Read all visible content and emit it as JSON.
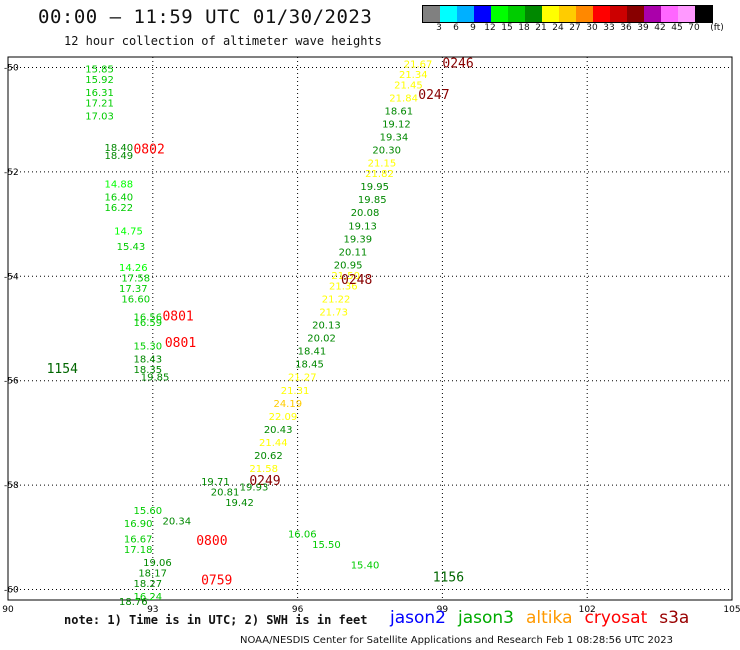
{
  "header": {
    "title": "00:00 – 11:59 UTC 01/30/2023",
    "subtitle": "12 hour collection of altimeter wave heights"
  },
  "colorbar": {
    "labels": [
      "3",
      "6",
      "9",
      "12",
      "15",
      "18",
      "21",
      "24",
      "27",
      "30",
      "33",
      "36",
      "39",
      "42",
      "45",
      "70",
      "(ft)"
    ],
    "colors": [
      "#808080",
      "#00ffff",
      "#00b0ff",
      "#0000ff",
      "#00ff00",
      "#00cc00",
      "#008800",
      "#ffff00",
      "#ffcc00",
      "#ff8800",
      "#ff0000",
      "#cc0000",
      "#880000",
      "#aa00aa",
      "#ff66ff",
      "#ff99ff",
      "#000000"
    ]
  },
  "footer": {
    "note": "note: 1) Time is in UTC; 2) SWH is in feet",
    "credit": "NOAA/NESDIS Center for Satellite Applications and Research   Feb  1 08:28:56 UTC 2023"
  },
  "satellites": [
    {
      "name": "jason2",
      "color": "#0000ff"
    },
    {
      "name": "jason3",
      "color": "#00aa00"
    },
    {
      "name": "altika",
      "color": "#ff9900"
    },
    {
      "name": "cryosat",
      "color": "#ff0000"
    },
    {
      "name": "s3a",
      "color": "#990000"
    }
  ],
  "chart_data": {
    "type": "scatter",
    "xlim": [
      90,
      105
    ],
    "ylim": [
      -60.2,
      -49.8
    ],
    "xticks": [
      90,
      93,
      96,
      99,
      102,
      105
    ],
    "yticks": [
      -50,
      -52,
      -54,
      -56,
      -58,
      -60
    ],
    "grid": true,
    "tracks": [
      {
        "name": "track-0246",
        "time_label": "0246",
        "time_pos": [
          99.0,
          -50.0
        ],
        "points": [
          [
            98.2,
            -50.0,
            21.67
          ],
          [
            98.1,
            -50.2,
            21.34
          ],
          [
            98.0,
            -50.4,
            21.45
          ],
          [
            97.9,
            -50.65,
            21.84
          ],
          [
            97.8,
            -50.9,
            18.61
          ],
          [
            97.75,
            -51.15,
            19.12
          ],
          [
            97.7,
            -51.4,
            19.34
          ],
          [
            97.55,
            -51.65,
            20.3
          ],
          [
            97.45,
            -51.9,
            21.15
          ],
          [
            97.4,
            -52.1,
            21.82
          ],
          [
            97.3,
            -52.35,
            19.95
          ],
          [
            97.25,
            -52.6,
            19.85
          ],
          [
            97.1,
            -52.85,
            20.08
          ],
          [
            97.05,
            -53.1,
            19.13
          ],
          [
            96.95,
            -53.35,
            19.39
          ],
          [
            96.85,
            -53.6,
            20.11
          ],
          [
            96.75,
            -53.85,
            20.95
          ],
          [
            96.7,
            -54.05,
            21.5
          ],
          [
            96.65,
            -54.25,
            21.36
          ],
          [
            96.5,
            -54.5,
            21.22
          ],
          [
            96.45,
            -54.75,
            21.73
          ],
          [
            96.3,
            -55.0,
            20.13
          ],
          [
            96.2,
            -55.25,
            20.02
          ],
          [
            96.0,
            -55.5,
            18.41
          ],
          [
            95.95,
            -55.75,
            18.45
          ],
          [
            95.8,
            -56.0,
            21.27
          ],
          [
            95.65,
            -56.25,
            21.31
          ],
          [
            95.5,
            -56.5,
            24.19
          ],
          [
            95.4,
            -56.75,
            22.09
          ],
          [
            95.3,
            -57.0,
            20.43
          ],
          [
            95.2,
            -57.25,
            21.44
          ],
          [
            95.1,
            -57.5,
            20.62
          ],
          [
            95.0,
            -57.75,
            21.58
          ]
        ]
      },
      {
        "name": "track-0247",
        "time_label": "0247",
        "time_pos": [
          98.5,
          -50.6
        ],
        "points": []
      },
      {
        "name": "track-0248",
        "time_label": "0248",
        "time_pos": [
          96.9,
          -54.15
        ],
        "points": []
      },
      {
        "name": "track-0249",
        "time_label": "0249",
        "time_pos": [
          95.0,
          -58.0
        ],
        "points": []
      },
      {
        "name": "track-0801",
        "time_label": "0801",
        "time_pos": [
          93.2,
          -54.85
        ],
        "points": []
      },
      {
        "name": "track-0801b",
        "time_label": "0801",
        "time_pos": [
          93.25,
          -55.35
        ],
        "points": []
      },
      {
        "name": "track-0802",
        "time_label": "0802",
        "time_pos": [
          92.6,
          -51.65
        ],
        "points": []
      },
      {
        "name": "track-0800",
        "time_label": "0800",
        "time_pos": [
          93.9,
          -59.15
        ],
        "points": []
      },
      {
        "name": "track-0759",
        "time_label": "0759",
        "time_pos": [
          94.0,
          -59.9
        ],
        "points": []
      },
      {
        "name": "track-1154",
        "time_label": "1154",
        "time_pos": [
          90.8,
          -55.85
        ],
        "points": []
      },
      {
        "name": "track-1156",
        "time_label": "1156",
        "time_pos": [
          98.8,
          -59.85
        ],
        "points": []
      },
      {
        "name": "track-0800-series",
        "points": [
          [
            91.6,
            -50.1,
            15.85
          ],
          [
            91.6,
            -50.3,
            15.92
          ],
          [
            91.6,
            -50.55,
            16.31
          ],
          [
            91.6,
            -50.75,
            17.21
          ],
          [
            91.6,
            -51.0,
            17.03
          ],
          [
            92.0,
            -51.6,
            18.4
          ],
          [
            92.0,
            -51.75,
            18.49
          ],
          [
            92.0,
            -52.3,
            14.88
          ],
          [
            92.0,
            -52.55,
            16.4
          ],
          [
            92.0,
            -52.75,
            16.22
          ],
          [
            92.2,
            -53.2,
            14.75
          ],
          [
            92.25,
            -53.5,
            15.43
          ],
          [
            92.3,
            -53.9,
            14.26
          ],
          [
            92.35,
            -54.1,
            17.58
          ],
          [
            92.3,
            -54.3,
            17.37
          ],
          [
            92.35,
            -54.5,
            16.6
          ],
          [
            92.6,
            -54.85,
            16.56
          ],
          [
            92.6,
            -54.95,
            16.59
          ],
          [
            92.6,
            -55.4,
            15.3
          ],
          [
            92.6,
            -55.65,
            18.43
          ],
          [
            92.6,
            -55.85,
            18.35
          ],
          [
            92.75,
            -56.0,
            19.85
          ]
        ]
      },
      {
        "name": "track-0759-series",
        "points": [
          [
            92.4,
            -58.8,
            16.9
          ],
          [
            93.2,
            -58.75,
            20.34
          ],
          [
            92.4,
            -59.1,
            16.67
          ],
          [
            92.4,
            -59.3,
            17.18
          ],
          [
            92.8,
            -59.55,
            19.06
          ],
          [
            92.7,
            -59.75,
            18.17
          ],
          [
            92.6,
            -59.95,
            18.27
          ],
          [
            92.6,
            -60.2,
            16.24
          ],
          [
            92.3,
            -60.3,
            18.76
          ],
          [
            92.6,
            -58.55,
            15.6
          ]
        ]
      },
      {
        "name": "track-1156-series",
        "points": [
          [
            94.2,
            -58.2,
            20.81
          ],
          [
            95.8,
            -59.0,
            16.06
          ],
          [
            97.1,
            -59.6,
            15.4
          ],
          [
            96.3,
            -59.2,
            15.5
          ],
          [
            94.8,
            -58.1,
            19.93
          ],
          [
            94.5,
            -58.4,
            19.42
          ],
          [
            94.0,
            -58.0,
            19.71
          ]
        ]
      }
    ]
  }
}
